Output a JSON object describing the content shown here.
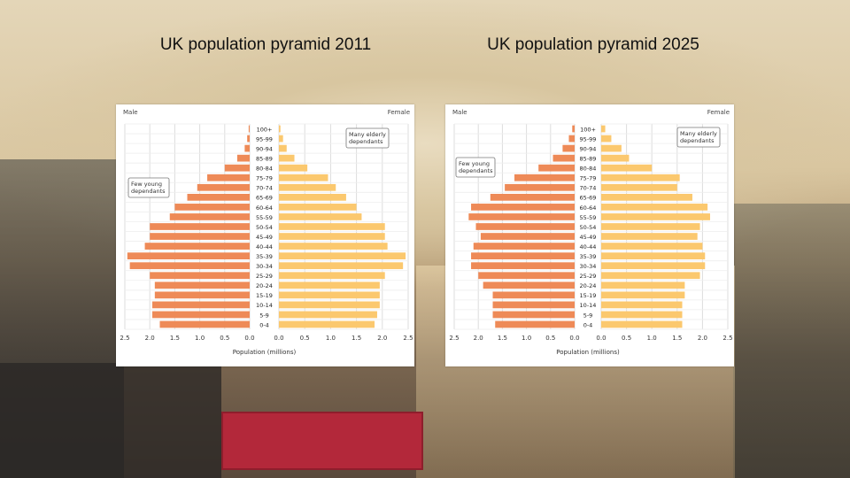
{
  "slide": {
    "title_left": "UK population pyramid 2011",
    "title_right": "UK population pyramid 2025"
  },
  "colors": {
    "male": "#ee8a57",
    "female": "#fbc86e",
    "grid": "#dddddd",
    "center_bg": "#ffffff"
  },
  "chart_data": [
    {
      "type": "bar",
      "title": "",
      "categories": [
        "0-4",
        "5-9",
        "10-14",
        "15-19",
        "20-24",
        "25-29",
        "30-34",
        "35-39",
        "40-44",
        "45-49",
        "50-54",
        "55-59",
        "60-64",
        "65-69",
        "70-74",
        "75-79",
        "80-84",
        "85-89",
        "90-94",
        "95-99",
        "100+"
      ],
      "series": [
        {
          "name": "Male",
          "values": [
            1.8,
            1.95,
            1.95,
            1.9,
            1.9,
            2.0,
            2.4,
            2.45,
            2.1,
            2.0,
            2.0,
            1.6,
            1.5,
            1.25,
            1.05,
            0.85,
            0.5,
            0.25,
            0.1,
            0.05,
            0.02
          ]
        },
        {
          "name": "Female",
          "values": [
            1.85,
            1.9,
            1.95,
            1.95,
            1.95,
            2.05,
            2.4,
            2.45,
            2.1,
            2.05,
            2.05,
            1.6,
            1.5,
            1.3,
            1.1,
            0.95,
            0.55,
            0.3,
            0.15,
            0.08,
            0.03
          ]
        }
      ],
      "xlabel": "Population (millions)",
      "xlim": [
        0,
        2.5
      ],
      "tick_labels": [
        "2.5",
        "2.0",
        "1.5",
        "1.0",
        "0.5",
        "0.0",
        "0.0",
        "0.5",
        "1.0",
        "1.5",
        "2.0",
        "2.5"
      ],
      "legend": {
        "male": "Male",
        "female": "Female"
      },
      "annotations": [
        {
          "text": "Few young dependants",
          "side": "left"
        },
        {
          "text": "Many elderly dependants",
          "side": "right"
        }
      ],
      "grid": true
    },
    {
      "type": "bar",
      "title": "",
      "categories": [
        "0-4",
        "5-9",
        "10-14",
        "15-19",
        "20-24",
        "25-29",
        "30-34",
        "35-39",
        "40-44",
        "45-49",
        "50-54",
        "55-59",
        "60-64",
        "65-69",
        "70-74",
        "75-79",
        "80-84",
        "85-89",
        "90-94",
        "95-99",
        "100+"
      ],
      "series": [
        {
          "name": "Male",
          "values": [
            1.65,
            1.7,
            1.7,
            1.7,
            1.9,
            2.0,
            2.15,
            2.15,
            2.1,
            1.95,
            2.05,
            2.2,
            2.15,
            1.75,
            1.45,
            1.25,
            0.75,
            0.45,
            0.25,
            0.12,
            0.05
          ]
        },
        {
          "name": "Female",
          "values": [
            1.6,
            1.6,
            1.6,
            1.65,
            1.65,
            1.95,
            2.05,
            2.05,
            2.0,
            1.9,
            1.95,
            2.15,
            2.1,
            1.8,
            1.5,
            1.55,
            1.0,
            0.55,
            0.4,
            0.2,
            0.08
          ]
        }
      ],
      "xlabel": "Population (millions)",
      "xlim": [
        0,
        2.5
      ],
      "tick_labels": [
        "2.5",
        "2.0",
        "1.5",
        "1.0",
        "0.5",
        "0.0",
        "0.0",
        "0.5",
        "1.0",
        "1.5",
        "2.0",
        "2.5"
      ],
      "legend": {
        "male": "Male",
        "female": "Female"
      },
      "annotations": [
        {
          "text": "Few young dependants",
          "side": "left"
        },
        {
          "text": "Many elderly dependants",
          "side": "right"
        }
      ],
      "grid": true
    }
  ]
}
